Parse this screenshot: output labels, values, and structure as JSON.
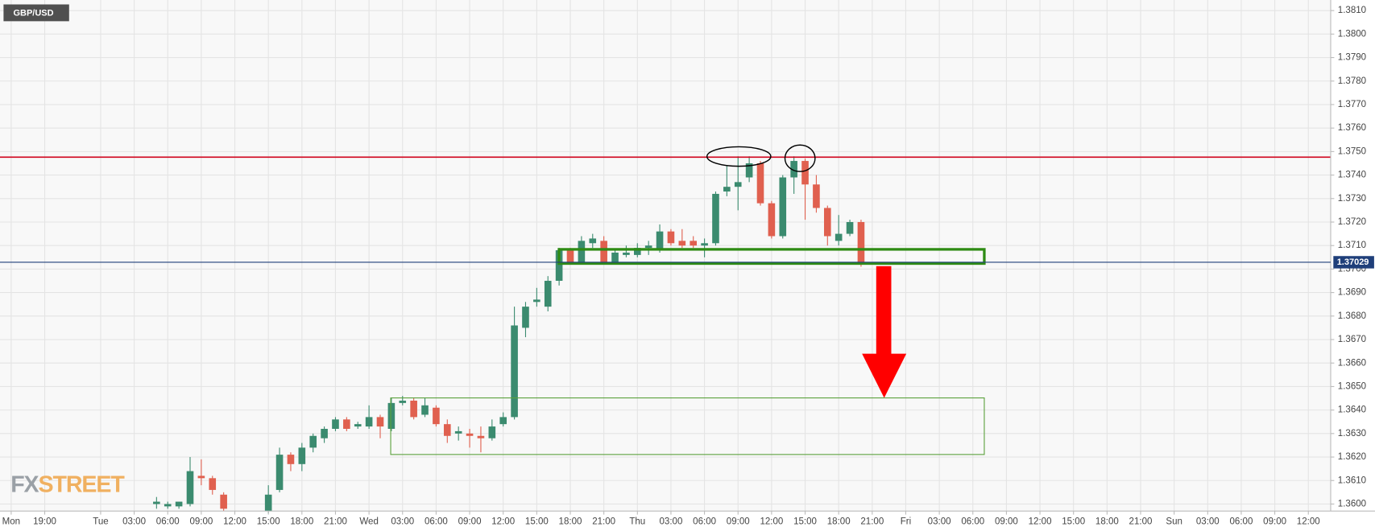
{
  "chart_data": {
    "type": "candlestick",
    "title": "GBP/USD",
    "watermark": [
      "FX",
      "STREET"
    ],
    "up_color": "#3b8b6f",
    "down_color": "#e0604f",
    "grid": true,
    "last_price": 1.37029,
    "x": [
      "Tue 05:00",
      "Tue 06:00",
      "Tue 07:00",
      "Tue 08:00",
      "Tue 09:00",
      "Tue 10:00",
      "Tue 11:00",
      "Tue 15:00",
      "Tue 16:00",
      "Tue 17:00",
      "Tue 18:00",
      "Tue 19:00",
      "Tue 20:00",
      "Tue 21:00",
      "Tue 22:00",
      "Tue 23:00",
      "Wed 00:00",
      "Wed 01:00",
      "Wed 02:00",
      "Wed 03:00",
      "Wed 04:00",
      "Wed 05:00",
      "Wed 06:00",
      "Wed 07:00",
      "Wed 08:00",
      "Wed 09:00",
      "Wed 10:00",
      "Wed 11:00",
      "Wed 12:00",
      "Wed 13:00",
      "Wed 14:00",
      "Wed 15:00",
      "Wed 16:00",
      "Wed 17:00",
      "Wed 18:00",
      "Wed 19:00",
      "Wed 20:00",
      "Wed 21:00",
      "Wed 22:00",
      "Wed 23:00",
      "Thu 00:00",
      "Thu 01:00",
      "Thu 02:00",
      "Thu 03:00",
      "Thu 04:00",
      "Thu 05:00",
      "Thu 06:00",
      "Thu 07:00",
      "Thu 08:00",
      "Thu 09:00",
      "Thu 10:00",
      "Thu 11:00",
      "Thu 12:00",
      "Thu 13:00",
      "Thu 14:00",
      "Thu 15:00",
      "Thu 16:00",
      "Thu 17:00",
      "Thu 18:00",
      "Thu 19:00",
      "Thu 20:00"
    ],
    "open": [
      1.36,
      1.3599,
      1.3599,
      1.36,
      1.3612,
      1.3611,
      1.3604,
      1.3597,
      1.3606,
      1.3621,
      1.3617,
      1.3624,
      1.3628,
      1.3632,
      1.3636,
      1.3633,
      1.3633,
      1.3637,
      1.3632,
      1.3643,
      1.3644,
      1.3638,
      1.3641,
      1.3634,
      1.363,
      1.363,
      1.3629,
      1.3628,
      1.3634,
      1.3637,
      1.3675,
      1.3686,
      1.3684,
      1.3695,
      1.3708,
      1.3703,
      1.3711,
      1.3712,
      1.3703,
      1.3706,
      1.3706,
      1.3709,
      1.3708,
      1.3716,
      1.3712,
      1.3712,
      1.371,
      1.3711,
      1.3733,
      1.3735,
      1.3739,
      1.3745,
      1.3728,
      1.3714,
      1.3739,
      1.3746,
      1.3736,
      1.3726,
      1.3712,
      1.3715,
      1.372
    ],
    "high": [
      1.3603,
      1.3601,
      1.3601,
      1.362,
      1.3619,
      1.3612,
      1.3605,
      1.3608,
      1.3624,
      1.3622,
      1.3626,
      1.363,
      1.3633,
      1.3637,
      1.3637,
      1.3635,
      1.3642,
      1.3638,
      1.3645,
      1.3646,
      1.3645,
      1.3645,
      1.3642,
      1.3636,
      1.3633,
      1.3632,
      1.3633,
      1.3636,
      1.3639,
      1.3684,
      1.3686,
      1.3692,
      1.3697,
      1.3709,
      1.3709,
      1.3714,
      1.3715,
      1.3714,
      1.3708,
      1.371,
      1.3711,
      1.3712,
      1.3719,
      1.3717,
      1.3717,
      1.3714,
      1.3713,
      1.3733,
      1.3744,
      1.3748,
      1.3748,
      1.3746,
      1.3729,
      1.374,
      1.3748,
      1.3747,
      1.374,
      1.3727,
      1.3723,
      1.3721,
      1.3721
    ],
    "low": [
      1.3598,
      1.3598,
      1.3598,
      1.3599,
      1.3608,
      1.3604,
      1.3597,
      1.3596,
      1.3605,
      1.3614,
      1.3614,
      1.3622,
      1.3626,
      1.3631,
      1.3631,
      1.3632,
      1.3632,
      1.3628,
      1.3631,
      1.3642,
      1.3636,
      1.3637,
      1.3633,
      1.3626,
      1.3627,
      1.3624,
      1.3622,
      1.3627,
      1.3633,
      1.3636,
      1.3671,
      1.3684,
      1.3682,
      1.3693,
      1.3702,
      1.3702,
      1.3709,
      1.3702,
      1.3702,
      1.3705,
      1.3705,
      1.3706,
      1.3707,
      1.371,
      1.3709,
      1.3709,
      1.3705,
      1.371,
      1.3731,
      1.3725,
      1.3737,
      1.3727,
      1.3713,
      1.3713,
      1.3732,
      1.3721,
      1.3724,
      1.371,
      1.371,
      1.3714,
      1.3701
    ],
    "close": [
      1.3601,
      1.36,
      1.3601,
      1.3614,
      1.3611,
      1.3606,
      1.3598,
      1.3604,
      1.3621,
      1.3617,
      1.3624,
      1.3629,
      1.3632,
      1.3636,
      1.3632,
      1.3634,
      1.3637,
      1.3633,
      1.3643,
      1.3644,
      1.3637,
      1.3642,
      1.3634,
      1.3629,
      1.3631,
      1.3629,
      1.3628,
      1.3633,
      1.3637,
      1.3676,
      1.3684,
      1.3687,
      1.3695,
      1.3708,
      1.3703,
      1.3712,
      1.3713,
      1.3703,
      1.3707,
      1.3707,
      1.3709,
      1.371,
      1.3716,
      1.3711,
      1.371,
      1.371,
      1.3711,
      1.3732,
      1.3735,
      1.3737,
      1.3745,
      1.3728,
      1.3714,
      1.3739,
      1.3746,
      1.3736,
      1.3726,
      1.3714,
      1.3715,
      1.372,
      1.3703
    ],
    "xlim": [
      "Mon 15:00",
      "Sun 14:00"
    ],
    "xticks": [
      {
        "value": "Mon 16:00",
        "label": "Mon"
      },
      {
        "value": "Mon 19:00",
        "label": "19:00"
      },
      {
        "value": "Tue 00:00",
        "label": "Tue"
      },
      {
        "value": "Tue 03:00",
        "label": "03:00"
      },
      {
        "value": "Tue 06:00",
        "label": "06:00"
      },
      {
        "value": "Tue 09:00",
        "label": "09:00"
      },
      {
        "value": "Tue 12:00",
        "label": "12:00"
      },
      {
        "value": "Tue 15:00",
        "label": "15:00"
      },
      {
        "value": "Tue 18:00",
        "label": "18:00"
      },
      {
        "value": "Tue 21:00",
        "label": "21:00"
      },
      {
        "value": "Wed 00:00",
        "label": "Wed"
      },
      {
        "value": "Wed 03:00",
        "label": "03:00"
      },
      {
        "value": "Wed 06:00",
        "label": "06:00"
      },
      {
        "value": "Wed 09:00",
        "label": "09:00"
      },
      {
        "value": "Wed 12:00",
        "label": "12:00"
      },
      {
        "value": "Wed 15:00",
        "label": "15:00"
      },
      {
        "value": "Wed 18:00",
        "label": "18:00"
      },
      {
        "value": "Wed 21:00",
        "label": "21:00"
      },
      {
        "value": "Thu 00:00",
        "label": "Thu"
      },
      {
        "value": "Thu 03:00",
        "label": "03:00"
      },
      {
        "value": "Thu 06:00",
        "label": "06:00"
      },
      {
        "value": "Thu 09:00",
        "label": "09:00"
      },
      {
        "value": "Thu 12:00",
        "label": "12:00"
      },
      {
        "value": "Thu 15:00",
        "label": "15:00"
      },
      {
        "value": "Thu 18:00",
        "label": "18:00"
      },
      {
        "value": "Thu 21:00",
        "label": "21:00"
      },
      {
        "value": "Fri 00:00",
        "label": "Fri"
      },
      {
        "value": "Fri 03:00",
        "label": "03:00"
      },
      {
        "value": "Fri 06:00",
        "label": "06:00"
      },
      {
        "value": "Fri 09:00",
        "label": "09:00"
      },
      {
        "value": "Fri 12:00",
        "label": "12:00"
      },
      {
        "value": "Fri 15:00",
        "label": "15:00"
      },
      {
        "value": "Fri 18:00",
        "label": "18:00"
      },
      {
        "value": "Fri 21:00",
        "label": "21:00"
      },
      {
        "value": "Sun 00:00",
        "label": "Sun"
      },
      {
        "value": "Sun 03:00",
        "label": "03:00"
      },
      {
        "value": "Sun 06:00",
        "label": "06:00"
      },
      {
        "value": "Sun 09:00",
        "label": "09:00"
      },
      {
        "value": "Sun 12:00",
        "label": "12:00"
      }
    ],
    "ylim": [
      1.3597,
      1.38145
    ],
    "yticks": [
      {
        "value": 1.36,
        "label": "1.3600"
      },
      {
        "value": 1.361,
        "label": "1.3610"
      },
      {
        "value": 1.362,
        "label": "1.3620"
      },
      {
        "value": 1.363,
        "label": "1.3630"
      },
      {
        "value": 1.364,
        "label": "1.3640"
      },
      {
        "value": 1.365,
        "label": "1.3650"
      },
      {
        "value": 1.366,
        "label": "1.3660"
      },
      {
        "value": 1.367,
        "label": "1.3670"
      },
      {
        "value": 1.368,
        "label": "1.3680"
      },
      {
        "value": 1.369,
        "label": "1.3690"
      },
      {
        "value": 1.37,
        "label": "1.3700"
      },
      {
        "value": 1.371,
        "label": "1.3710"
      },
      {
        "value": 1.372,
        "label": "1.3720"
      },
      {
        "value": 1.373,
        "label": "1.3730"
      },
      {
        "value": 1.374,
        "label": "1.3740"
      },
      {
        "value": 1.375,
        "label": "1.3750"
      },
      {
        "value": 1.376,
        "label": "1.3760"
      },
      {
        "value": 1.377,
        "label": "1.3770"
      },
      {
        "value": 1.378,
        "label": "1.3780"
      },
      {
        "value": 1.379,
        "label": "1.3790"
      },
      {
        "value": 1.38,
        "label": "1.3800"
      },
      {
        "value": 1.381,
        "label": "1.3810"
      }
    ]
  }
}
